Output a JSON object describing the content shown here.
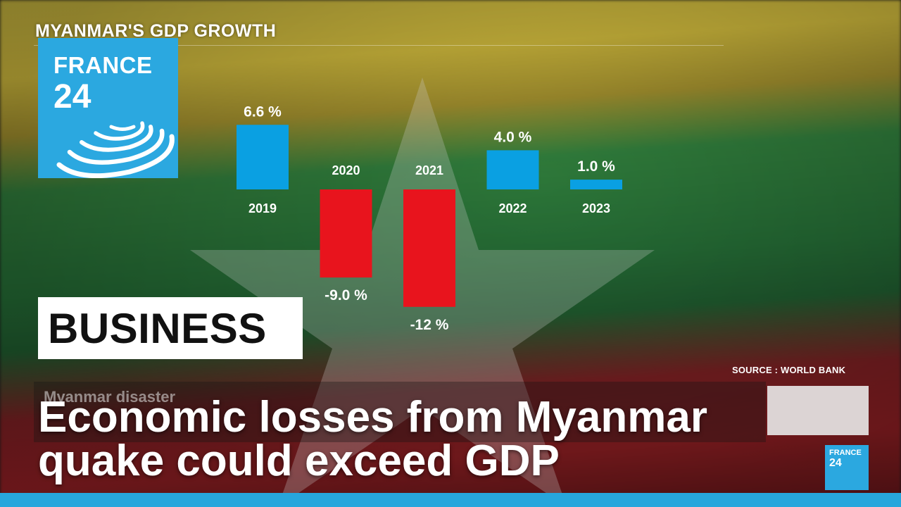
{
  "chart_data": {
    "type": "bar",
    "title": "MYANMAR'S GDP GROWTH",
    "categories": [
      "2019",
      "2020",
      "2021",
      "2022",
      "2023"
    ],
    "values": [
      6.6,
      -9.0,
      -12,
      4.0,
      1.0
    ],
    "value_labels": [
      "6.6 %",
      "-9.0 %",
      "-12 %",
      "4.0 %",
      "1.0 %"
    ],
    "unit": "%",
    "source": "SOURCE : WORLD BANK",
    "positive_color": "#0aa0e2",
    "negative_color": "#e8141d",
    "ylim": [
      -12,
      6.6
    ]
  },
  "logo": {
    "line1": "FRANCE",
    "line2": "24",
    "color": "#2ba8e0"
  },
  "section": {
    "label": "BUSINESS"
  },
  "background_bar": {
    "kicker": "Myanmar disaster"
  },
  "headline": {
    "line1": "Economic losses from Myanmar",
    "line2": "quake could exceed GDP"
  },
  "mini_logo": {
    "line1": "FRANCE",
    "line2": "24"
  },
  "colors": {
    "accent": "#27a6dc"
  }
}
